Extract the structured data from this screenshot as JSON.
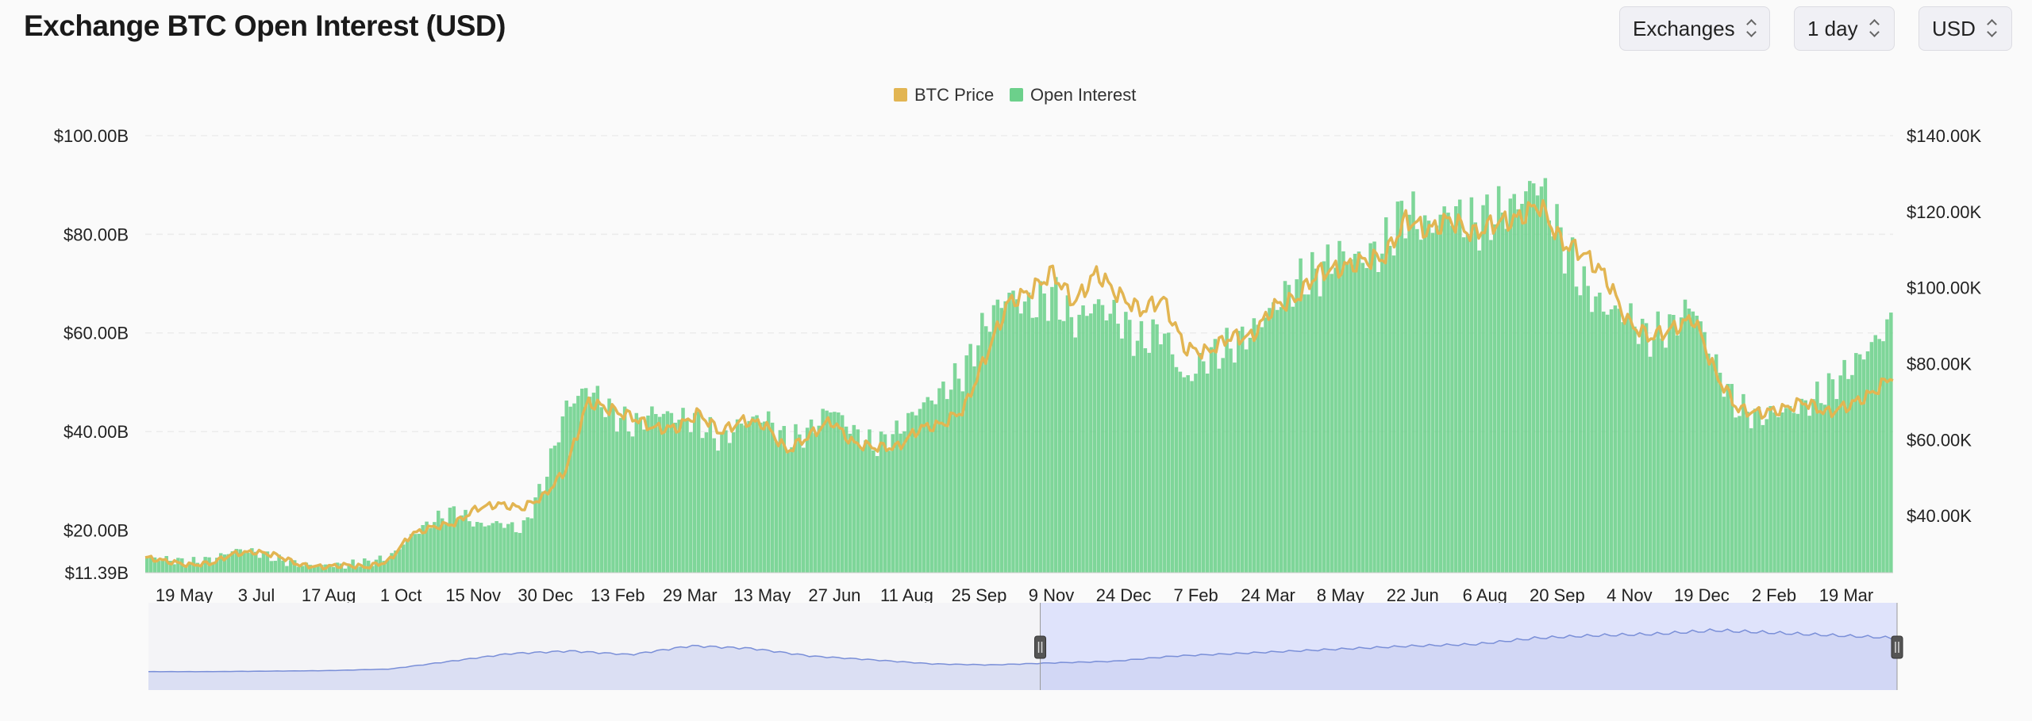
{
  "header": {
    "title": "Exchange BTC Open Interest (USD)",
    "controls": [
      {
        "label": "Exchanges",
        "icon": "chevron-updown-icon"
      },
      {
        "label": "1 day",
        "icon": "chevron-updown-icon"
      },
      {
        "label": "USD",
        "icon": "chevron-updown-icon"
      }
    ]
  },
  "chart_data": {
    "type": "bar+line",
    "legend": [
      {
        "name": "BTC Price",
        "color": "#e2b552"
      },
      {
        "name": "Open Interest",
        "color": "#6cd08b"
      }
    ],
    "legend_placement": "top-center",
    "grid": true,
    "y_left": {
      "ticks": [
        "$100.00B",
        "$80.00B",
        "$60.00B",
        "$40.00B",
        "$20.00B",
        "$11.39B"
      ],
      "range": [
        11.39,
        100
      ]
    },
    "y_right": {
      "ticks": [
        "$140.00K",
        "$120.00K",
        "$100.00K",
        "$80.00K",
        "$60.00K",
        "$40.00K"
      ],
      "range": [
        25,
        140
      ]
    },
    "x_ticks": [
      "19 May",
      "3 Jul",
      "17 Aug",
      "1 Oct",
      "15 Nov",
      "30 Dec",
      "13 Feb",
      "29 Mar",
      "13 May",
      "27 Jun",
      "11 Aug",
      "25 Sep",
      "9 Nov",
      "24 Dec",
      "7 Feb",
      "24 Mar",
      "8 May",
      "22 Jun",
      "6 Aug",
      "20 Sep",
      "4 Nov",
      "19 Dec",
      "2 Feb",
      "19 Mar"
    ],
    "open_interest_billions": [
      14.5,
      14.0,
      13.5,
      14.2,
      16.0,
      15.5,
      14.0,
      13.0,
      12.8,
      13.0,
      13.5,
      14.5,
      19.0,
      22.0,
      24.0,
      21.0,
      21.5,
      20.0,
      30.0,
      45.0,
      49.0,
      44.0,
      41.0,
      44.0,
      43.0,
      42.0,
      38.0,
      42.0,
      43.0,
      38.0,
      40.0,
      45.0,
      40.0,
      37.0,
      40.0,
      45.0,
      48.0,
      52.0,
      62.0,
      68.0,
      65.0,
      68.0,
      62.0,
      66.0,
      63.0,
      58.0,
      61.0,
      50.0,
      55.0,
      57.0,
      60.0,
      65.0,
      70.0,
      72.0,
      76.0,
      75.0,
      77.0,
      85.0,
      81.0,
      85.0,
      82.0,
      84.0,
      86.0,
      91.0,
      80.0,
      70.0,
      65.0,
      64.0,
      59.0,
      61.0,
      66.0,
      54.0,
      45.0,
      43.0,
      44.0,
      45.0,
      48.0,
      52.0,
      57.0,
      62.0
    ],
    "btc_price_thousands": [
      29.0,
      28.0,
      27.0,
      27.5,
      30.0,
      30.5,
      29.5,
      27.0,
      26.5,
      27.0,
      26.5,
      28.0,
      35.0,
      37.0,
      38.0,
      42.0,
      43.0,
      42.0,
      45.0,
      52.0,
      70.0,
      68.0,
      66.0,
      63.0,
      63.0,
      67.0,
      62.0,
      65.0,
      64.0,
      57.0,
      61.0,
      65.0,
      59.0,
      58.0,
      58.0,
      63.0,
      64.0,
      68.0,
      82.0,
      96.0,
      99.0,
      104.0,
      96.0,
      104.0,
      98.0,
      94.0,
      97.0,
      84.0,
      83.0,
      87.0,
      87.0,
      95.0,
      97.0,
      104.0,
      105.0,
      107.0,
      108.0,
      118.0,
      115.0,
      118.0,
      114.0,
      117.0,
      118.0,
      122.0,
      112.0,
      109.0,
      103.0,
      91.0,
      87.0,
      89.0,
      92.0,
      77.0,
      68.0,
      67.0,
      68.0,
      70.0,
      67.0,
      69.0,
      72.0,
      77.0
    ]
  },
  "navigator": {
    "overview_values": [
      0.05,
      0.05,
      0.06,
      0.07,
      0.1,
      0.25,
      0.4,
      0.45,
      0.38,
      0.55,
      0.5,
      0.35,
      0.28,
      0.2,
      0.18,
      0.22,
      0.25,
      0.35,
      0.4,
      0.45,
      0.5,
      0.55,
      0.58,
      0.7,
      0.75,
      0.78,
      0.85,
      0.8,
      0.75,
      0.7
    ],
    "selection_start": 0.51,
    "selection_end": 1.0,
    "handle_icon": "drag-handle-icon"
  }
}
